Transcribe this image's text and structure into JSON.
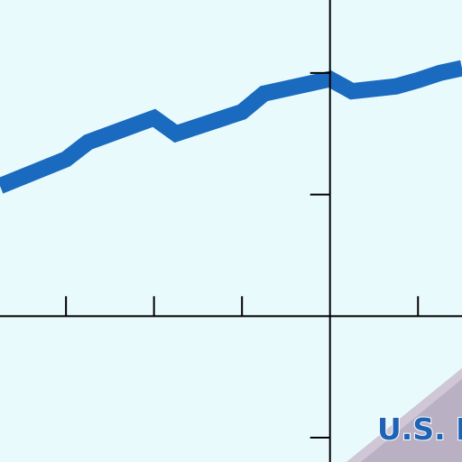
{
  "chart_data": {
    "type": "line",
    "title": "",
    "xlabel": "",
    "ylabel": "",
    "xlim": [
      -3.75,
      1.5
    ],
    "ylim": [
      -1.2,
      2.6
    ],
    "grid": false,
    "legend": "none",
    "series": [
      {
        "x": [
          -3.75,
          -3.0,
          -2.75,
          -2.0,
          -1.75,
          -1.0,
          -0.75,
          0.0,
          0.25,
          0.75,
          1.0,
          1.25,
          1.5
        ],
        "y": [
          1.07,
          1.29,
          1.43,
          1.63,
          1.5,
          1.68,
          1.83,
          1.95,
          1.85,
          1.89,
          1.94,
          2.0,
          2.04
        ],
        "color": "#1a6bbf"
      }
    ],
    "x_ticks": [
      -3,
      -2,
      -1,
      1
    ],
    "y_ticks": [
      2,
      1,
      -1
    ]
  },
  "watermark": {
    "text": "U.S. F"
  },
  "colors": {
    "background": "#e9fafc",
    "curve": "#1a6bbf",
    "axis": "#000000",
    "watermark_band": "#b9b0c3"
  }
}
